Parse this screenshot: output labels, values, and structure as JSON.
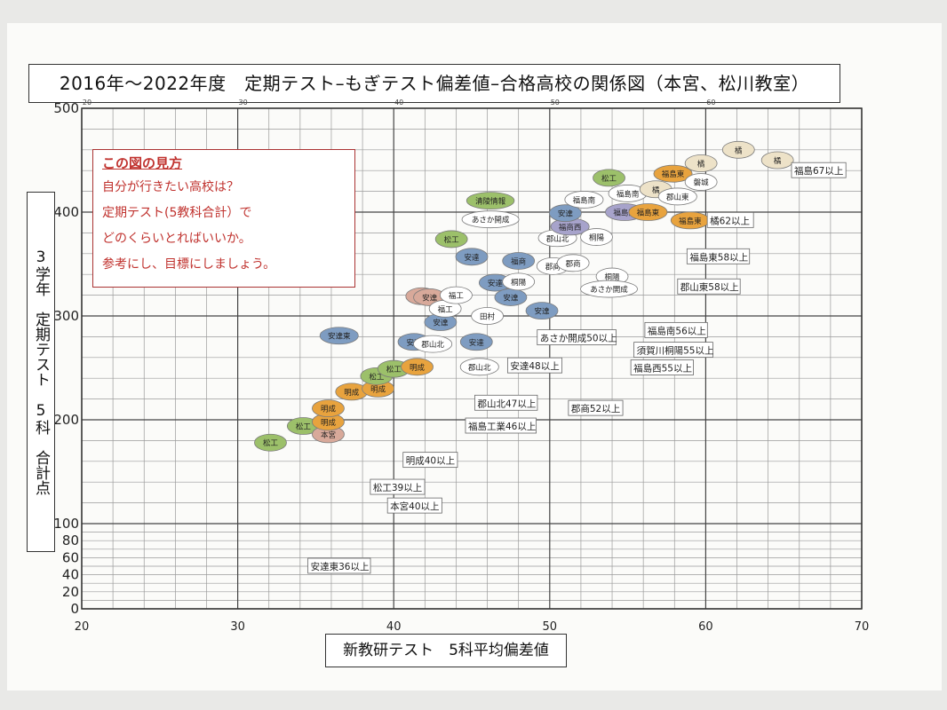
{
  "title": "2016年～2022年度　定期テスト–もぎテスト偏差値–合格高校の関係図（本宮、松川教室）",
  "howto": {
    "heading": "この図の見方",
    "lines": [
      "自分が行きたい高校は？",
      "定期テスト(5教科合計）で",
      "どのくらいとればいいか。",
      "参考にし、目標にしましょう。"
    ]
  },
  "chart_data": {
    "type": "scatter",
    "title": "2016年～2022年度　定期テスト–もぎテスト偏差値–合格高校の関係図（本宮、松川教室）",
    "xlabel": "新教研テスト　5科平均偏差値",
    "ylabel": "3学年　定期テスト　5科　合計点",
    "xlim": [
      20,
      70
    ],
    "ylim": [
      0,
      500
    ],
    "x_ticks": [
      "20",
      "30",
      "40",
      "50",
      "60",
      "70"
    ],
    "x_ticks_top": [
      "20",
      "30",
      "40",
      "50",
      "60"
    ],
    "y_ticks": [
      "0",
      "20",
      "40",
      "60",
      "80",
      "100",
      "200",
      "300",
      "400",
      "500"
    ],
    "grid": true,
    "colors": {
      "green": "#9cc06a",
      "blue": "#7e9cc1",
      "orange": "#e8a33e",
      "rose": "#d8a99a",
      "violet": "#a7a3cb",
      "beige": "#ede2c8",
      "white": "#ffffff"
    },
    "points": [
      {
        "label": "松工",
        "x": 32.1,
        "y": 178,
        "color": "green"
      },
      {
        "label": "松工",
        "x": 34.2,
        "y": 194,
        "color": "green"
      },
      {
        "label": "本宮",
        "x": 35.8,
        "y": 186,
        "color": "rose"
      },
      {
        "label": "明成",
        "x": 35.8,
        "y": 198,
        "color": "orange"
      },
      {
        "label": "明成",
        "x": 35.8,
        "y": 211,
        "color": "orange"
      },
      {
        "label": "明成",
        "x": 37.3,
        "y": 227,
        "color": "orange"
      },
      {
        "label": "明成",
        "x": 39.0,
        "y": 230,
        "color": "orange"
      },
      {
        "label": "松工",
        "x": 38.9,
        "y": 242,
        "color": "green"
      },
      {
        "label": "松工",
        "x": 40.0,
        "y": 249,
        "color": "green"
      },
      {
        "label": "明成",
        "x": 41.5,
        "y": 251,
        "color": "orange"
      },
      {
        "label": "安達東",
        "x": 36.5,
        "y": 281,
        "color": "blue"
      },
      {
        "label": "安達",
        "x": 41.3,
        "y": 275,
        "color": "blue"
      },
      {
        "label": "郡山北",
        "x": 42.5,
        "y": 273,
        "color": "white"
      },
      {
        "label": "安達",
        "x": 45.3,
        "y": 275,
        "color": "blue"
      },
      {
        "label": "安達",
        "x": 43.0,
        "y": 294,
        "color": "blue"
      },
      {
        "label": "郡山北",
        "x": 45.5,
        "y": 251,
        "color": "white"
      },
      {
        "label": "本宮",
        "x": 41.8,
        "y": 319,
        "color": "rose"
      },
      {
        "label": "安達",
        "x": 42.3,
        "y": 318,
        "color": "rose"
      },
      {
        "label": "福工",
        "x": 43.3,
        "y": 307,
        "color": "white"
      },
      {
        "label": "福工",
        "x": 44.0,
        "y": 320,
        "color": "white"
      },
      {
        "label": "田村",
        "x": 46.0,
        "y": 300,
        "color": "white"
      },
      {
        "label": "安達",
        "x": 46.5,
        "y": 332,
        "color": "blue"
      },
      {
        "label": "安達",
        "x": 47.5,
        "y": 318,
        "color": "blue"
      },
      {
        "label": "桐陽",
        "x": 48.0,
        "y": 333,
        "color": "white"
      },
      {
        "label": "安達",
        "x": 49.5,
        "y": 305,
        "color": "blue"
      },
      {
        "label": "福商",
        "x": 48.0,
        "y": 353,
        "color": "blue"
      },
      {
        "label": "安達",
        "x": 45.0,
        "y": 357,
        "color": "blue"
      },
      {
        "label": "松工",
        "x": 43.7,
        "y": 374,
        "color": "green"
      },
      {
        "label": "あさか開成",
        "x": 46.2,
        "y": 393,
        "color": "white"
      },
      {
        "label": "清陵情報",
        "x": 46.2,
        "y": 411,
        "color": "green"
      },
      {
        "label": "郡商",
        "x": 50.2,
        "y": 348,
        "color": "white"
      },
      {
        "label": "郡商",
        "x": 51.5,
        "y": 351,
        "color": "white"
      },
      {
        "label": "郡山北",
        "x": 50.5,
        "y": 375,
        "color": "white"
      },
      {
        "label": "福商西",
        "x": 51.3,
        "y": 386,
        "color": "violet"
      },
      {
        "label": "安達",
        "x": 51.0,
        "y": 399,
        "color": "blue"
      },
      {
        "label": "桐陽",
        "x": 53.0,
        "y": 376,
        "color": "white"
      },
      {
        "label": "桐陽",
        "x": 54.0,
        "y": 338,
        "color": "white"
      },
      {
        "label": "あさか開成",
        "x": 53.8,
        "y": 326,
        "color": "white"
      },
      {
        "label": "福島南",
        "x": 52.2,
        "y": 412,
        "color": "white"
      },
      {
        "label": "福島南",
        "x": 55.0,
        "y": 418,
        "color": "white"
      },
      {
        "label": "松工",
        "x": 53.8,
        "y": 433,
        "color": "green"
      },
      {
        "label": "福島西",
        "x": 54.8,
        "y": 400,
        "color": "violet"
      },
      {
        "label": "福島東",
        "x": 56.3,
        "y": 400,
        "color": "orange"
      },
      {
        "label": "福島東",
        "x": 59.0,
        "y": 392,
        "color": "orange"
      },
      {
        "label": "福島東",
        "x": 57.9,
        "y": 437,
        "color": "orange"
      },
      {
        "label": "橘",
        "x": 56.8,
        "y": 422,
        "color": "beige"
      },
      {
        "label": "郡山東",
        "x": 58.2,
        "y": 415,
        "color": "white"
      },
      {
        "label": "磐城",
        "x": 59.7,
        "y": 429,
        "color": "white"
      },
      {
        "label": "橘",
        "x": 59.7,
        "y": 447,
        "color": "beige"
      },
      {
        "label": "橘",
        "x": 62.1,
        "y": 460,
        "color": "beige"
      },
      {
        "label": "橘",
        "x": 64.6,
        "y": 450,
        "color": "beige"
      }
    ],
    "threshold_labels": [
      {
        "text": "福島67以上",
        "x": 65.5,
        "y": 440
      },
      {
        "text": "橘62以上",
        "x": 60.1,
        "y": 392
      },
      {
        "text": "福島東58以上",
        "x": 58.8,
        "y": 357
      },
      {
        "text": "郡山東58以上",
        "x": 58.2,
        "y": 328
      },
      {
        "text": "福島南56以上",
        "x": 56.1,
        "y": 286
      },
      {
        "text": "須賀川桐陽55以上",
        "x": 55.4,
        "y": 267
      },
      {
        "text": "福島西55以上",
        "x": 55.2,
        "y": 250
      },
      {
        "text": "あさか開成50以上",
        "x": 49.2,
        "y": 279
      },
      {
        "text": "安達48以上",
        "x": 47.3,
        "y": 252
      },
      {
        "text": "郡山北47以上",
        "x": 45.2,
        "y": 216
      },
      {
        "text": "郡商52以上",
        "x": 51.2,
        "y": 211
      },
      {
        "text": "福島工業46以上",
        "x": 44.6,
        "y": 194
      },
      {
        "text": "明成40以上",
        "x": 40.6,
        "y": 161
      },
      {
        "text": "松工39以上",
        "x": 38.5,
        "y": 135
      },
      {
        "text": "本宮40以上",
        "x": 39.6,
        "y": 117
      },
      {
        "text": "安達東36以上",
        "x": 34.5,
        "y": 50
      }
    ]
  }
}
